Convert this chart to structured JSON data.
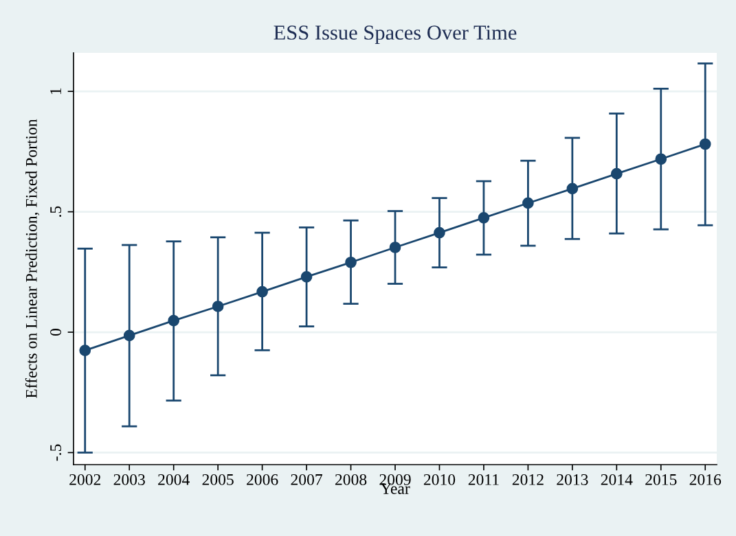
{
  "chart_data": {
    "type": "line",
    "title": "ESS Issue Spaces Over Time",
    "xlabel": "Year",
    "ylabel": "Effects on Linear Prediction, Fixed Portion",
    "x": [
      2002,
      2003,
      2004,
      2005,
      2006,
      2007,
      2008,
      2009,
      2010,
      2011,
      2012,
      2013,
      2014,
      2015,
      2016
    ],
    "series": [
      {
        "color": "#1a476f",
        "values": [
          -0.076,
          -0.014,
          0.048,
          0.107,
          0.168,
          0.23,
          0.29,
          0.352,
          0.413,
          0.475,
          0.536,
          0.596,
          0.658,
          0.719,
          0.781
        ],
        "errors": [
          [
            -0.5,
            0.347
          ],
          [
            -0.391,
            0.362
          ],
          [
            -0.284,
            0.377
          ],
          [
            -0.179,
            0.394
          ],
          [
            -0.075,
            0.413
          ],
          [
            0.024,
            0.435
          ],
          [
            0.118,
            0.464
          ],
          [
            0.201,
            0.503
          ],
          [
            0.269,
            0.557
          ],
          [
            0.322,
            0.627
          ],
          [
            0.359,
            0.712
          ],
          [
            0.387,
            0.807
          ],
          [
            0.41,
            0.908
          ],
          [
            0.427,
            1.011
          ],
          [
            0.444,
            1.116
          ]
        ]
      }
    ],
    "xlim": [
      2001.74,
      2016.26
    ],
    "xticks": [
      2002,
      2003,
      2004,
      2005,
      2006,
      2007,
      2008,
      2009,
      2010,
      2011,
      2012,
      2013,
      2014,
      2015,
      2016
    ],
    "ylim": [
      -0.55,
      1.16
    ],
    "yticks": [
      {
        "value": -0.5,
        "label": "-.5"
      },
      0,
      {
        "value": 0.5,
        "label": ".5"
      },
      1
    ],
    "grid": "y",
    "marker": "circle",
    "line_style": "solid",
    "legend": false
  }
}
